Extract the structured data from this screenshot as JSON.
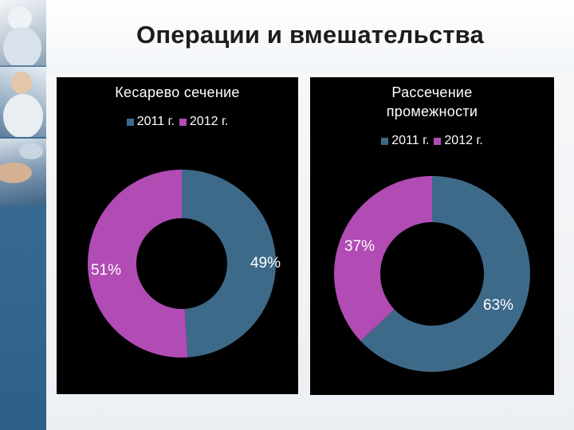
{
  "slide": {
    "title": "Операции и вмешательства"
  },
  "colors": {
    "series_2011": "#3e6a8a",
    "series_2012": "#b14cb4",
    "panel_background": "#000000"
  },
  "chart_data": [
    {
      "type": "pie",
      "variant": "doughnut",
      "title": "Кесарево сечение",
      "legend_position": "top",
      "series": [
        {
          "name": "2011 г.",
          "value": 49,
          "label": "49%"
        },
        {
          "name": "2012 г.",
          "value": 51,
          "label": "51%"
        }
      ]
    },
    {
      "type": "pie",
      "variant": "doughnut",
      "title": "Рассечение промежности",
      "title_lines": [
        "Рассечение",
        "промежности"
      ],
      "legend_position": "top",
      "series": [
        {
          "name": "2011 г.",
          "value": 63,
          "label": "63%"
        },
        {
          "name": "2012 г.",
          "value": 37,
          "label": "37%"
        }
      ]
    }
  ]
}
